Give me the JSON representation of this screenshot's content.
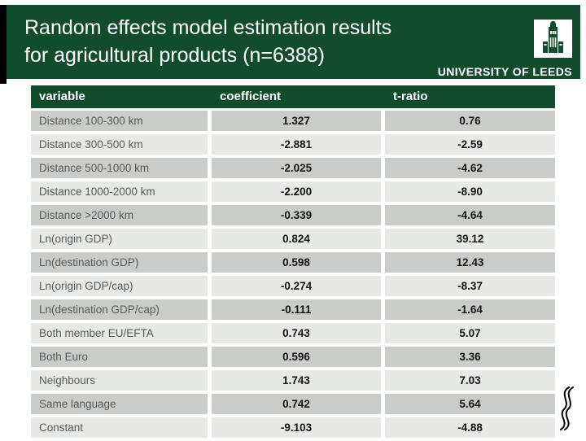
{
  "slide": {
    "title_line1": "Random effects model estimation results",
    "title_line2": "for agricultural products (n=6388)",
    "logo": {
      "text": "UNIVERSITY OF LEEDS",
      "icon": "leeds-tower-icon"
    }
  },
  "table": {
    "headers": [
      "variable",
      "coefficient",
      "t-ratio"
    ],
    "rows": [
      [
        "Distance 100-300 km",
        "1.327",
        "0.76"
      ],
      [
        "Distance 300-500 km",
        "-2.881",
        "-2.59"
      ],
      [
        "Distance 500-1000 km",
        "-2.025",
        "-4.62"
      ],
      [
        "Distance 1000-2000 km",
        "-2.200",
        "-8.90"
      ],
      [
        "Distance >2000 km",
        "-0.339",
        "-4.64"
      ],
      [
        "Ln(origin GDP)",
        "0.824",
        "39.12"
      ],
      [
        "Ln(destination GDP)",
        "0.598",
        "12.43"
      ],
      [
        "Ln(origin GDP/cap)",
        "-0.274",
        "-8.37"
      ],
      [
        "Ln(destination GDP/cap)",
        "-0.111",
        "-1.64"
      ],
      [
        "Both member EU/EFTA",
        "0.743",
        "5.07"
      ],
      [
        "Both Euro",
        "0.596",
        "3.36"
      ],
      [
        "Neighbours",
        "1.743",
        "7.03"
      ],
      [
        "Same language",
        "0.742",
        "5.64"
      ],
      [
        "Constant",
        "-9.103",
        "-4.88"
      ]
    ]
  },
  "colors": {
    "leeds_green": "#114d2d",
    "row_dark": "#c9cdc9",
    "row_light": "#e7e9e6",
    "label_text": "#58595b",
    "number_text": "#121212",
    "accent_black": "#000000"
  },
  "decoration": {
    "flourish": "double-s-flourish"
  }
}
